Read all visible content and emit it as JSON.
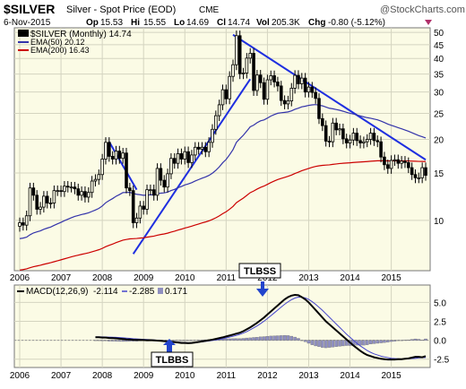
{
  "header": {
    "symbol": "$SILVER",
    "name": "Silver - Spot Price (EOD)",
    "exchange": "CME",
    "date": "6-Nov-2015",
    "op_label": "Op",
    "op": "15.53",
    "hi_label": "Hi",
    "hi": "15.55",
    "lo_label": "Lo",
    "lo": "14.69",
    "cl_label": "Cl",
    "cl": "14.74",
    "vol_label": "Vol",
    "vol": "205.3K",
    "chg_label": "Chg",
    "chg": "-0.80 (-5.12%)",
    "watermark": "@StockCharts.com"
  },
  "legend": [
    {
      "label": "$SILVER (Monthly) 14.74",
      "color": "#000000"
    },
    {
      "label": "EMA(50) 20.12",
      "color": "#3333aa"
    },
    {
      "label": "EMA(200) 16.43",
      "color": "#cc0000"
    }
  ],
  "macd_legend": {
    "prefix": "MACD(12,26,9)",
    "macd": "-2.114",
    "signal": "-2.285",
    "hist": "0.171"
  },
  "annotations": {
    "tlbss": "TLBSS",
    "tlbbs": "TLBBS"
  },
  "chart_data": [
    {
      "type": "candlestick",
      "title": "Silver - Spot Price (EOD)",
      "scale": "log",
      "ylim": [
        6.5,
        52
      ],
      "y_ticks": [
        10,
        15,
        20,
        25,
        30,
        35,
        40,
        45,
        50
      ],
      "x_ticks": [
        "2006",
        "2007",
        "2008",
        "2009",
        "2010",
        "2011",
        "2012",
        "2013",
        "2014",
        "2015"
      ],
      "x_range": [
        "2006-01",
        "2015-11"
      ],
      "grid": true,
      "monthly_close": [
        9.8,
        9.6,
        10.4,
        13.2,
        12.4,
        11.0,
        11.2,
        12.3,
        11.6,
        11.6,
        12.9,
        12.9,
        12.8,
        13.4,
        13.3,
        13.3,
        13.1,
        12.4,
        12.8,
        12.2,
        12.7,
        14.0,
        14.2,
        14.8,
        16.9,
        19.5,
        17.3,
        16.9,
        18.1,
        17.0,
        17.8,
        13.2,
        12.9,
        9.8,
        10.2,
        11.3,
        11.0,
        13.0,
        13.0,
        12.4,
        15.6,
        14.1,
        13.3,
        14.9,
        17.0,
        16.3,
        17.7,
        16.9,
        18.0,
        16.4,
        17.5,
        18.7,
        18.4,
        18.7,
        18.0,
        19.5,
        21.8,
        24.5,
        26.9,
        30.6,
        28.3,
        34.3,
        37.9,
        48.6,
        35.1,
        35.3,
        40.1,
        41.8,
        30.4,
        34.7,
        32.5,
        28.2,
        33.3,
        34.5,
        32.7,
        31.6,
        27.9,
        27.1,
        27.8,
        31.0,
        34.6,
        32.2,
        33.8,
        30.0,
        31.3,
        29.9,
        28.4,
        23.9,
        22.5,
        19.7,
        19.6,
        23.0,
        21.7,
        21.9,
        20.1,
        19.4,
        19.9,
        21.1,
        19.8,
        19.4,
        19.6,
        20.0,
        21.1,
        19.8,
        19.6,
        17.2,
        16.1,
        15.6,
        16.7,
        16.8,
        16.3,
        16.6,
        16.4,
        15.7,
        14.8,
        14.4,
        14.4,
        15.7,
        14.7
      ],
      "series": [
        {
          "name": "$SILVER (Monthly)",
          "last": 14.74
        },
        {
          "name": "EMA(50)",
          "last": 20.12
        },
        {
          "name": "EMA(200)",
          "last": 16.43
        }
      ],
      "trendlines": [
        {
          "from": [
            "2008-03",
            19.6
          ],
          "to": [
            "2008-11",
            13.0
          ]
        },
        {
          "from": [
            "2008-10",
            7.5
          ],
          "to": [
            "2011-08",
            33.5
          ]
        },
        {
          "from": [
            "2011-03",
            49.0
          ],
          "to": [
            "2015-11",
            16.8
          ]
        }
      ]
    },
    {
      "type": "macd",
      "title": "MACD(12,26,9)",
      "ylim": [
        -3.6,
        7.3
      ],
      "y_ticks": [
        -2.5,
        0.0,
        2.5,
        5.0
      ],
      "x_ticks": [
        "2006",
        "2007",
        "2008",
        "2009",
        "2010",
        "2011",
        "2012",
        "2013",
        "2014",
        "2015"
      ],
      "macd": -2.114,
      "signal": -2.285,
      "histogram": 0.171,
      "macd_line": [
        0.4,
        0.4,
        0.35,
        0.35,
        0.3,
        0.28,
        0.25,
        0.2,
        0.16,
        0.12,
        0.1,
        0.06,
        0.05,
        0.05,
        0.03,
        0.0,
        0.02,
        -0.02,
        -0.05,
        -0.08,
        -0.12,
        -0.15,
        -0.2,
        -0.25,
        -0.3,
        -0.35,
        -0.36,
        -0.38,
        -0.35,
        -0.3,
        -0.22,
        -0.15,
        -0.08,
        0.0,
        0.08,
        0.18,
        0.28,
        0.38,
        0.5,
        0.62,
        0.75,
        0.88,
        1.0,
        1.2,
        1.45,
        1.7,
        2.0,
        2.3,
        2.65,
        3.0,
        3.4,
        3.8,
        4.2,
        4.6,
        5.0,
        5.4,
        5.7,
        5.9,
        6.0,
        5.95,
        5.7,
        5.4,
        5.0,
        4.5,
        4.0,
        3.5,
        3.0,
        2.5,
        2.1,
        1.7,
        1.3,
        0.9,
        0.5,
        0.1,
        -0.3,
        -0.7,
        -1.05,
        -1.4,
        -1.7,
        -1.95,
        -2.1,
        -2.25,
        -2.35,
        -2.45,
        -2.5,
        -2.55,
        -2.55,
        -2.55,
        -2.5,
        -2.5,
        -2.45,
        -2.4,
        -2.3,
        -2.2,
        -2.2,
        -2.25,
        -2.1
      ],
      "signal_line": [
        0.45,
        0.45,
        0.44,
        0.43,
        0.42,
        0.4,
        0.38,
        0.35,
        0.32,
        0.28,
        0.25,
        0.2,
        0.18,
        0.15,
        0.12,
        0.1,
        0.07,
        0.04,
        0.0,
        -0.03,
        -0.07,
        -0.1,
        -0.15,
        -0.2,
        -0.24,
        -0.28,
        -0.3,
        -0.32,
        -0.32,
        -0.3,
        -0.26,
        -0.21,
        -0.15,
        -0.09,
        -0.03,
        0.04,
        0.12,
        0.21,
        0.31,
        0.42,
        0.53,
        0.65,
        0.78,
        0.95,
        1.15,
        1.38,
        1.63,
        1.9,
        2.2,
        2.52,
        2.87,
        3.24,
        3.62,
        4.0,
        4.38,
        4.75,
        5.08,
        5.36,
        5.58,
        5.7,
        5.7,
        5.6,
        5.4,
        5.1,
        4.75,
        4.35,
        3.95,
        3.5,
        3.05,
        2.6,
        2.15,
        1.7,
        1.25,
        0.8,
        0.4,
        0.0,
        -0.4,
        -0.75,
        -1.05,
        -1.35,
        -1.6,
        -1.8,
        -1.95,
        -2.1,
        -2.2,
        -2.3,
        -2.38,
        -2.42,
        -2.45,
        -2.47,
        -2.47,
        -2.45,
        -2.42,
        -2.38,
        -2.33,
        -2.3,
        -2.285
      ],
      "annotations": [
        {
          "text": "TLBSS",
          "at": "2011-10",
          "position": "above"
        },
        {
          "text": "TLBBS",
          "at": "2009-05",
          "position": "below"
        }
      ]
    }
  ]
}
